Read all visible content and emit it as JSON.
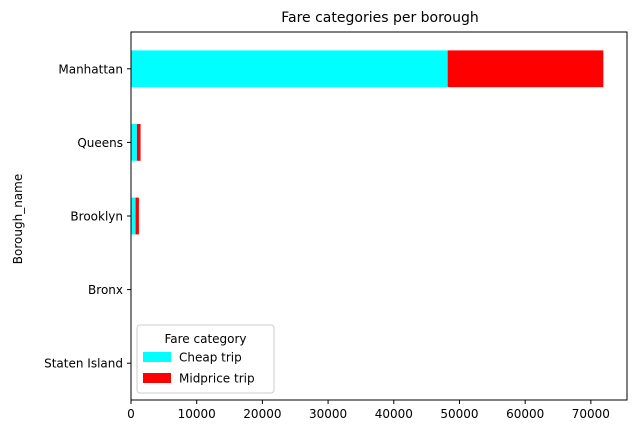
{
  "chart_data": {
    "type": "bar",
    "orientation": "horizontal",
    "stacked": true,
    "title": "Fare categories per borough",
    "xlabel": "",
    "ylabel": "Borough_name",
    "categories": [
      "Manhattan",
      "Queens",
      "Brooklyn",
      "Bronx",
      "Staten Island"
    ],
    "series": [
      {
        "name": "Cheap trip",
        "color": "#00ffff",
        "values": [
          48200,
          900,
          700,
          40,
          10
        ]
      },
      {
        "name": "Midprice trip",
        "color": "#ff0000",
        "values": [
          23700,
          550,
          500,
          20,
          5
        ]
      }
    ],
    "xlim": [
      0,
      75500
    ],
    "xticks": [
      0,
      10000,
      20000,
      30000,
      40000,
      50000,
      60000,
      70000
    ],
    "grid": false,
    "legend": {
      "title": "Fare category",
      "placement": "lower-left"
    }
  }
}
